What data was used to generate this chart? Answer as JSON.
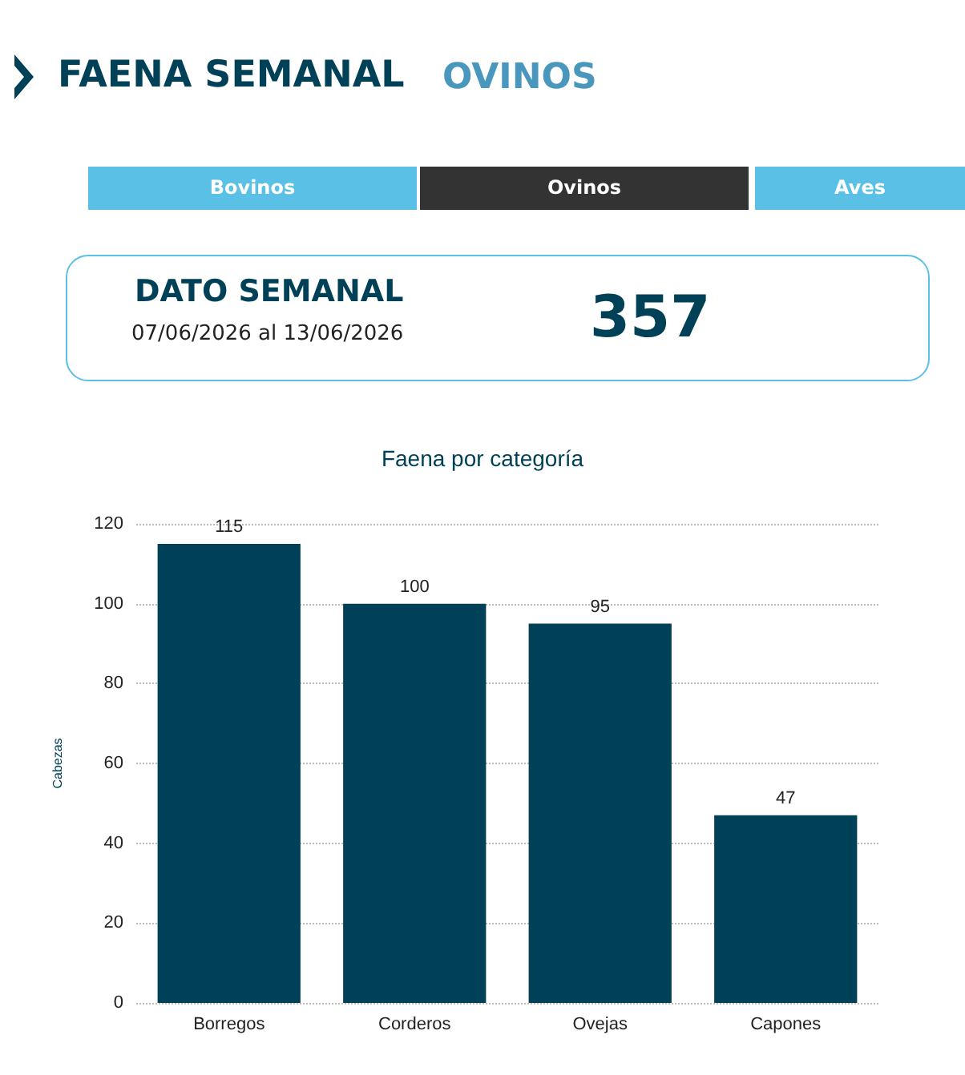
{
  "chart_data": [
    {
      "type": "other",
      "title": "FAENA SEMANAL",
      "subtitle": "OVINOS",
      "annotations": [
        "Bovinos",
        "Ovinos",
        "Aves",
        "DATO SEMANAL",
        "07/06/2026 al 13/06/2026",
        "357"
      ]
    },
    {
      "type": "bar",
      "title": "Faena por categoría",
      "ylabel": "Cabezas",
      "categories": [
        "Borregos",
        "Corderos",
        "Ovejas",
        "Capones"
      ],
      "values": [
        115,
        100,
        95,
        47
      ],
      "color": "#004157",
      "ylim": [
        0,
        120
      ],
      "yticks": [
        0,
        20,
        40,
        60,
        80,
        100,
        120
      ],
      "grid": "y",
      "data_labels": true
    }
  ]
}
